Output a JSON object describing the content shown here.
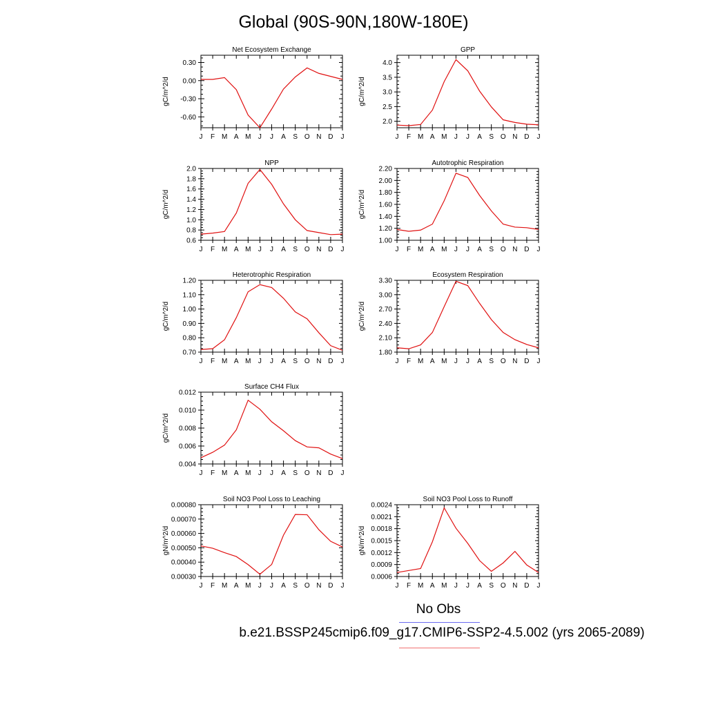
{
  "figure": {
    "title": "Global (90S-90N,180W-180E)",
    "legend": [
      {
        "label": "No Obs",
        "color": "#6a6af0"
      },
      {
        "label": "b.e21.BSSP245cmip6.f09_g17.CMIP6-SSP2-4.5.002 (yrs 2065-2089)",
        "color": "#f07070"
      }
    ],
    "line_color": "#e01010"
  },
  "chart_data": [
    {
      "type": "line",
      "title": "Net Ecosystem Exchange",
      "ylabel": "gC/m^2/d",
      "categories": [
        "J",
        "F",
        "M",
        "A",
        "M",
        "J",
        "J",
        "A",
        "S",
        "O",
        "N",
        "D",
        "J"
      ],
      "ylim": [
        -0.78,
        0.42
      ],
      "yticks": [
        -0.6,
        -0.3,
        0.0,
        0.3
      ],
      "ytick_labels": [
        "-0.60",
        "-0.30",
        "0.00",
        "0.30"
      ],
      "series": [
        {
          "values": [
            0.02,
            0.02,
            0.05,
            -0.15,
            -0.57,
            -0.78,
            -0.47,
            -0.14,
            0.06,
            0.21,
            0.12,
            0.07,
            0.02
          ]
        }
      ]
    },
    {
      "type": "line",
      "title": "GPP",
      "ylabel": "gC/m^2/d",
      "categories": [
        "J",
        "F",
        "M",
        "A",
        "M",
        "J",
        "J",
        "A",
        "S",
        "O",
        "N",
        "D",
        "J"
      ],
      "ylim": [
        1.78,
        4.25
      ],
      "yticks": [
        2.0,
        2.5,
        3.0,
        3.5,
        4.0
      ],
      "ytick_labels": [
        "2.0",
        "2.5",
        "3.0",
        "3.5",
        "4.0"
      ],
      "series": [
        {
          "values": [
            1.87,
            1.85,
            1.89,
            2.38,
            3.35,
            4.1,
            3.72,
            3.03,
            2.49,
            2.05,
            1.96,
            1.9,
            1.88
          ]
        }
      ]
    },
    {
      "type": "line",
      "title": "NPP",
      "ylabel": "gC/m^2/d",
      "categories": [
        "J",
        "F",
        "M",
        "A",
        "M",
        "J",
        "J",
        "A",
        "S",
        "O",
        "N",
        "D",
        "J"
      ],
      "ylim": [
        0.6,
        2.0
      ],
      "yticks": [
        0.6,
        0.8,
        1.0,
        1.2,
        1.4,
        1.6,
        1.8,
        2.0
      ],
      "ytick_labels": [
        "0.6",
        "0.8",
        "1.0",
        "1.2",
        "1.4",
        "1.6",
        "1.8",
        "2.0"
      ],
      "series": [
        {
          "values": [
            0.72,
            0.74,
            0.77,
            1.13,
            1.71,
            1.98,
            1.69,
            1.31,
            1.0,
            0.79,
            0.75,
            0.71,
            0.72
          ]
        }
      ]
    },
    {
      "type": "line",
      "title": "Autotrophic Respiration",
      "ylabel": "gC/m^2/d",
      "categories": [
        "J",
        "F",
        "M",
        "A",
        "M",
        "J",
        "J",
        "A",
        "S",
        "O",
        "N",
        "D",
        "J"
      ],
      "ylim": [
        1.0,
        2.2
      ],
      "yticks": [
        1.0,
        1.2,
        1.4,
        1.6,
        1.8,
        2.0,
        2.2
      ],
      "ytick_labels": [
        "1.00",
        "1.20",
        "1.40",
        "1.60",
        "1.80",
        "2.00",
        "2.20"
      ],
      "series": [
        {
          "values": [
            1.18,
            1.15,
            1.17,
            1.27,
            1.66,
            2.12,
            2.05,
            1.75,
            1.49,
            1.27,
            1.22,
            1.21,
            1.18
          ]
        }
      ]
    },
    {
      "type": "line",
      "title": "Heterotrophic Respiration",
      "ylabel": "gC/m^2/d",
      "categories": [
        "J",
        "F",
        "M",
        "A",
        "M",
        "J",
        "J",
        "A",
        "S",
        "O",
        "N",
        "D",
        "J"
      ],
      "ylim": [
        0.7,
        1.2
      ],
      "yticks": [
        0.7,
        0.8,
        0.9,
        1.0,
        1.1,
        1.2
      ],
      "ytick_labels": [
        "0.70",
        "0.80",
        "0.90",
        "1.00",
        "1.10",
        "1.20"
      ],
      "series": [
        {
          "values": [
            0.718,
            0.724,
            0.786,
            0.94,
            1.12,
            1.17,
            1.15,
            1.075,
            0.98,
            0.932,
            0.835,
            0.745,
            0.713
          ]
        }
      ]
    },
    {
      "type": "line",
      "title": "Ecosystem Respiration",
      "ylabel": "gC/m^2/d",
      "categories": [
        "J",
        "F",
        "M",
        "A",
        "M",
        "J",
        "J",
        "A",
        "S",
        "O",
        "N",
        "D",
        "J"
      ],
      "ylim": [
        1.8,
        3.3
      ],
      "yticks": [
        1.8,
        2.1,
        2.4,
        2.7,
        3.0,
        3.3
      ],
      "ytick_labels": [
        "1.80",
        "2.10",
        "2.40",
        "2.70",
        "3.00",
        "3.30"
      ],
      "series": [
        {
          "values": [
            1.89,
            1.87,
            1.95,
            2.21,
            2.75,
            3.28,
            3.19,
            2.82,
            2.48,
            2.21,
            2.06,
            1.96,
            1.89
          ]
        }
      ]
    },
    {
      "type": "line",
      "title": "Surface CH4 Flux",
      "ylabel": "gC/m^2/d",
      "categories": [
        "J",
        "F",
        "M",
        "A",
        "M",
        "J",
        "J",
        "A",
        "S",
        "O",
        "N",
        "D",
        "J"
      ],
      "ylim": [
        0.004,
        0.012
      ],
      "yticks": [
        0.004,
        0.006,
        0.008,
        0.01,
        0.012
      ],
      "ytick_labels": [
        "0.004",
        "0.006",
        "0.008",
        "0.010",
        "0.012"
      ],
      "series": [
        {
          "values": [
            0.0047,
            0.0053,
            0.0061,
            0.0078,
            0.0111,
            0.0101,
            0.0087,
            0.0077,
            0.0066,
            0.0059,
            0.0058,
            0.0051,
            0.0046
          ]
        }
      ]
    },
    {
      "type": "line",
      "title": "Soil NO3 Pool Loss to Leaching",
      "ylabel": "gN/m^2/d",
      "categories": [
        "J",
        "F",
        "M",
        "A",
        "M",
        "J",
        "J",
        "A",
        "S",
        "O",
        "N",
        "D",
        "J"
      ],
      "ylim": [
        0.0003,
        0.0008
      ],
      "yticks": [
        0.0003,
        0.0004,
        0.0005,
        0.0006,
        0.0007,
        0.0008
      ],
      "ytick_labels": [
        "0.00030",
        "0.00040",
        "0.00050",
        "0.00060",
        "0.00070",
        "0.00080"
      ],
      "series": [
        {
          "values": [
            0.000513,
            0.000497,
            0.000466,
            0.000439,
            0.000383,
            0.000316,
            0.000384,
            0.000588,
            0.000732,
            0.00073,
            0.000626,
            0.000545,
            0.000506
          ]
        }
      ]
    },
    {
      "type": "line",
      "title": "Soil NO3 Pool Loss to Runoff",
      "ylabel": "gN/m^2/d",
      "categories": [
        "J",
        "F",
        "M",
        "A",
        "M",
        "J",
        "J",
        "A",
        "S",
        "O",
        "N",
        "D",
        "J"
      ],
      "ylim": [
        0.0006,
        0.0024
      ],
      "yticks": [
        0.0006,
        0.0009,
        0.0012,
        0.0015,
        0.0018,
        0.0021,
        0.0024
      ],
      "ytick_labels": [
        "0.0006",
        "0.0009",
        "0.0012",
        "0.0015",
        "0.0018",
        "0.0021",
        "0.0024"
      ],
      "series": [
        {
          "values": [
            0.0007,
            0.00075,
            0.0008,
            0.00147,
            0.00232,
            0.00181,
            0.00143,
            0.001,
            0.00073,
            0.00094,
            0.00123,
            0.00089,
            0.0007
          ]
        }
      ]
    }
  ]
}
